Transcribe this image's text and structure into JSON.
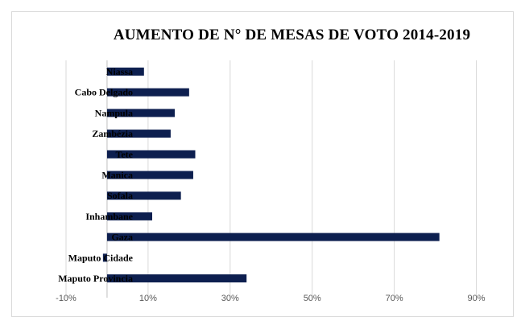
{
  "chart_data": {
    "type": "bar",
    "orientation": "horizontal",
    "title": "AUMENTO DE N° DE MESAS DE VOTO 2014-2019",
    "categories": [
      "Niassa",
      "Cabo Delgado",
      "Nampula",
      "Zambézia",
      "Tete",
      "Manica",
      "Sofala",
      "Inhambane",
      "Gaza",
      "Maputo Cidade",
      "Maputo Provincia"
    ],
    "values": [
      0.09,
      0.2,
      0.165,
      0.155,
      0.215,
      0.21,
      0.18,
      0.11,
      0.81,
      -0.01,
      0.34
    ],
    "xlim": [
      -0.1,
      0.95
    ],
    "x_ticks": [
      -0.1,
      0.1,
      0.3,
      0.5,
      0.7,
      0.9
    ],
    "x_tick_labels": [
      "-10%",
      "10%",
      "30%",
      "50%",
      "70%",
      "90%"
    ],
    "gridlines": "vertical",
    "bar_color": "#0d1f4f",
    "grid_color": "#d9d9d9",
    "legend": "none"
  }
}
